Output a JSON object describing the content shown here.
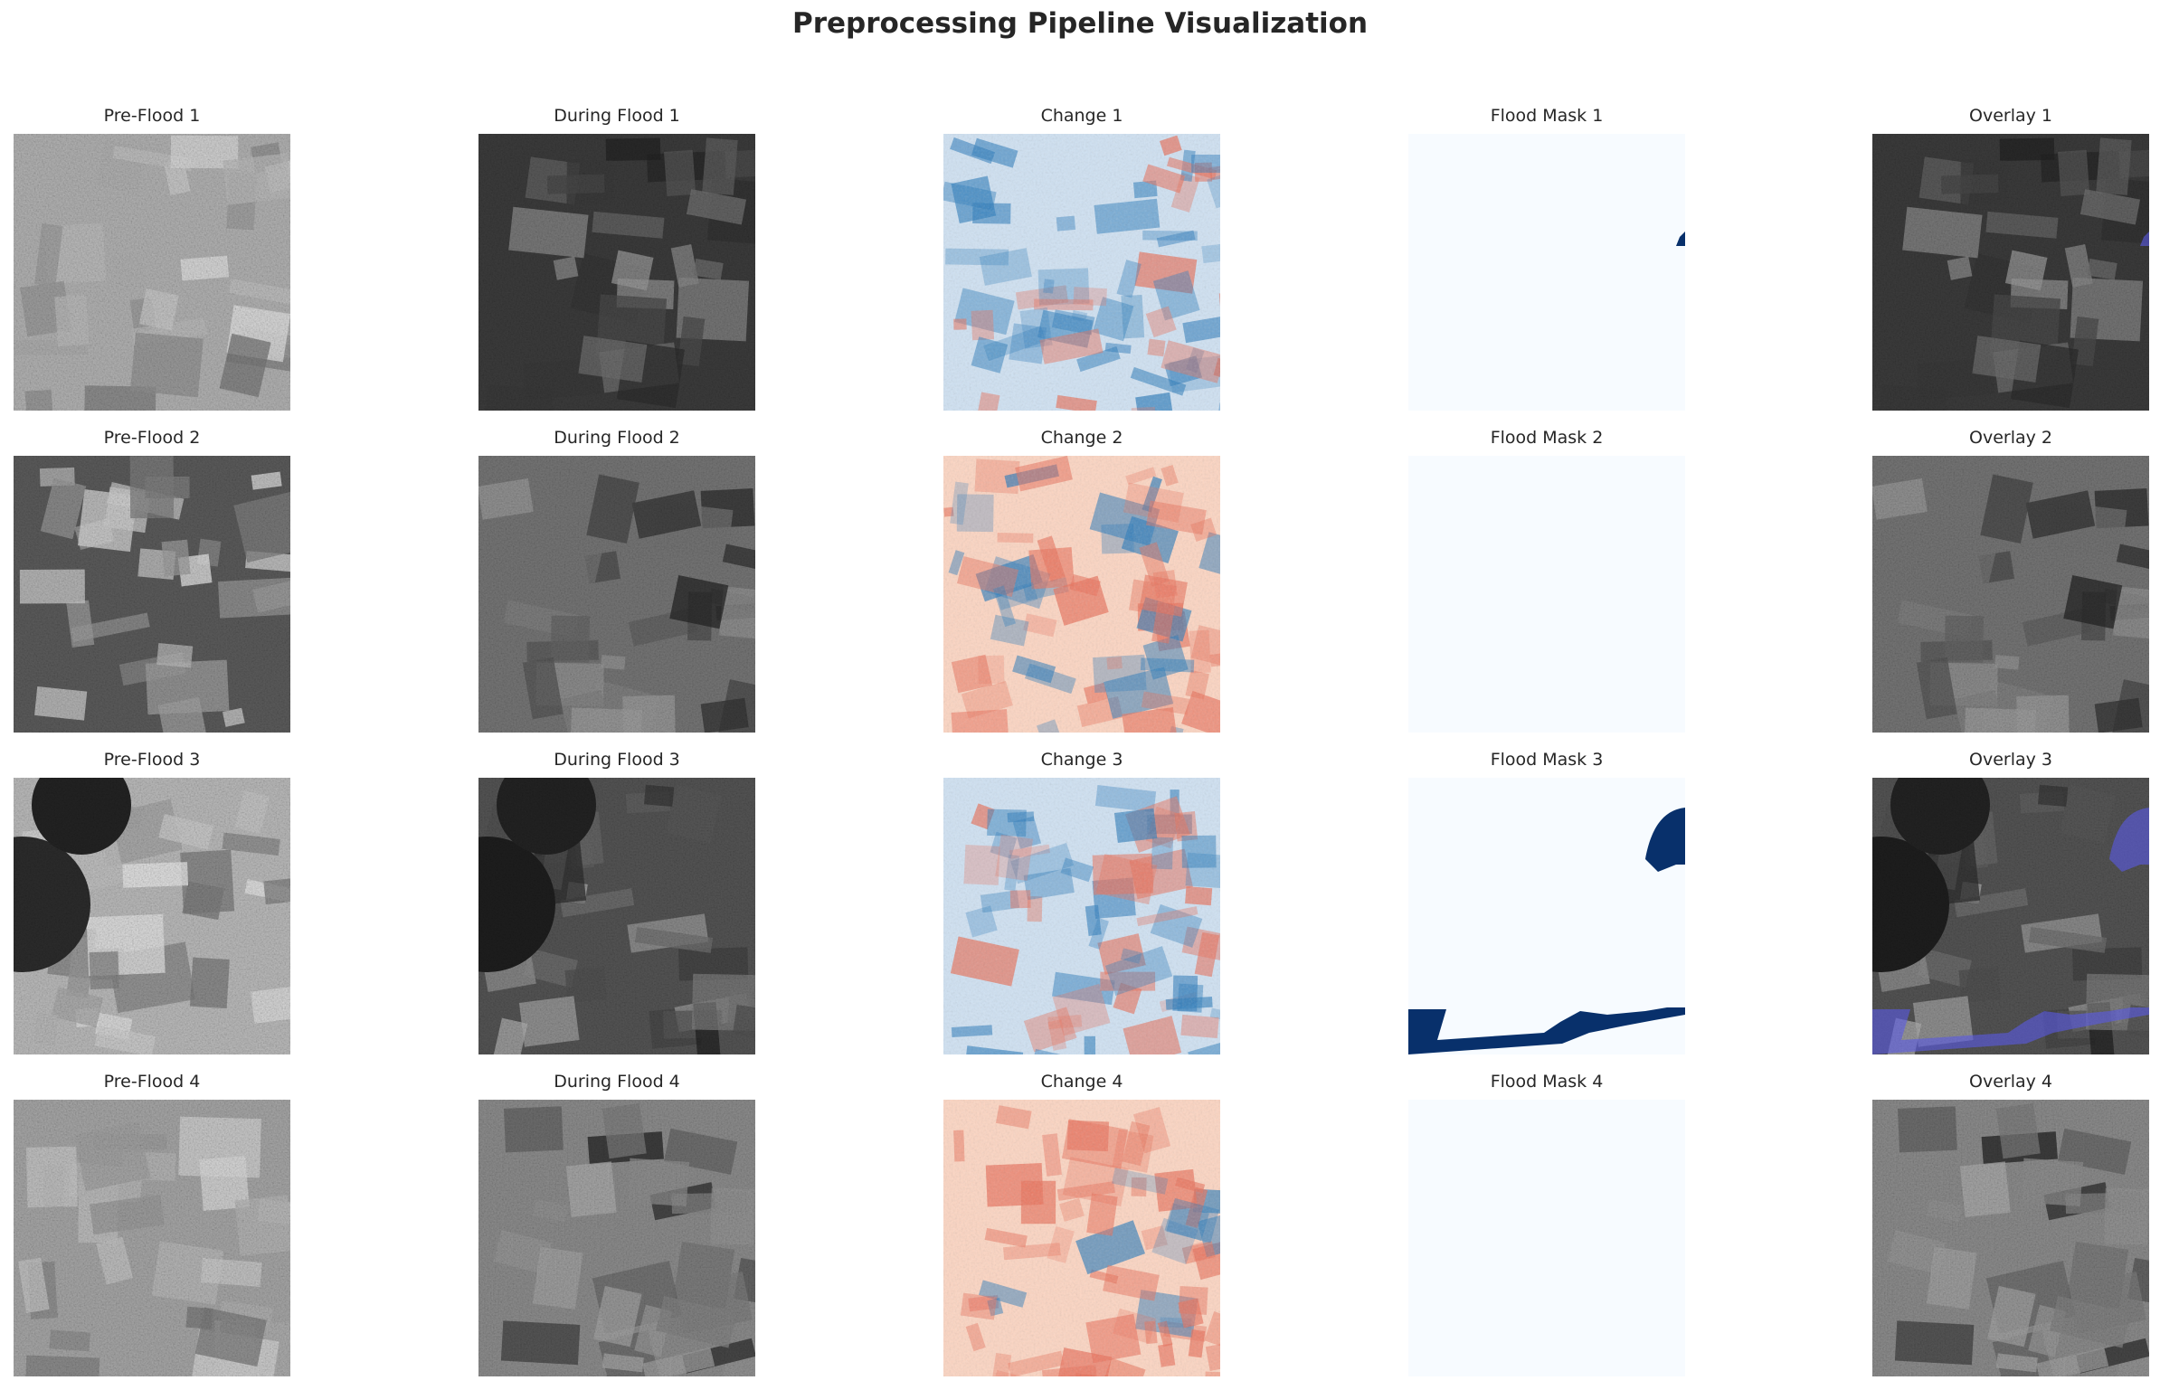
{
  "figure": {
    "title": "Preprocessing Pipeline Visualization"
  },
  "panels": [
    {
      "title": "Pre-Flood 1",
      "kind": "sar",
      "scene": 1,
      "variant": "pre"
    },
    {
      "title": "During Flood 1",
      "kind": "sar",
      "scene": 1,
      "variant": "during"
    },
    {
      "title": "Change 1",
      "kind": "change",
      "scene": 1
    },
    {
      "title": "Flood Mask 1",
      "kind": "mask",
      "scene": 1
    },
    {
      "title": "Overlay 1",
      "kind": "overlay",
      "scene": 1
    },
    {
      "title": "Pre-Flood 2",
      "kind": "sar",
      "scene": 2,
      "variant": "pre"
    },
    {
      "title": "During Flood 2",
      "kind": "sar",
      "scene": 2,
      "variant": "during"
    },
    {
      "title": "Change 2",
      "kind": "change",
      "scene": 2
    },
    {
      "title": "Flood Mask 2",
      "kind": "mask",
      "scene": 2
    },
    {
      "title": "Overlay 2",
      "kind": "overlay",
      "scene": 2
    },
    {
      "title": "Pre-Flood 3",
      "kind": "sar",
      "scene": 3,
      "variant": "pre"
    },
    {
      "title": "During Flood 3",
      "kind": "sar",
      "scene": 3,
      "variant": "during"
    },
    {
      "title": "Change 3",
      "kind": "change",
      "scene": 3
    },
    {
      "title": "Flood Mask 3",
      "kind": "mask",
      "scene": 3
    },
    {
      "title": "Overlay 3",
      "kind": "overlay",
      "scene": 3
    },
    {
      "title": "Pre-Flood 4",
      "kind": "sar",
      "scene": 4,
      "variant": "pre"
    },
    {
      "title": "During Flood 4",
      "kind": "sar",
      "scene": 4,
      "variant": "during"
    },
    {
      "title": "Change 4",
      "kind": "change",
      "scene": 4
    },
    {
      "title": "Flood Mask 4",
      "kind": "mask",
      "scene": 4
    },
    {
      "title": "Overlay 4",
      "kind": "overlay",
      "scene": 4
    }
  ],
  "colors": {
    "mask_background": "#f7fbff",
    "mask_flood": "#08306b",
    "overlay_flood": "#5a5ae6",
    "change_negative": "#2b7bba",
    "change_positive": "#e8705a",
    "change_neutral": "#f2f2f2"
  }
}
